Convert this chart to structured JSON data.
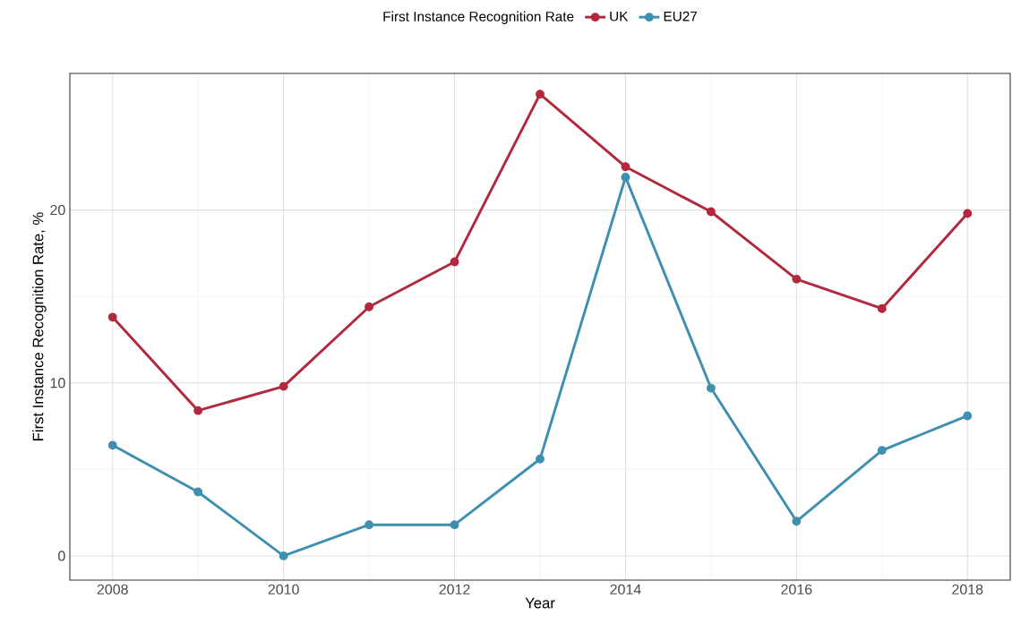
{
  "chart_data": {
    "type": "line",
    "xlabel": "Year",
    "ylabel": "First Instance Recognition Rate, %",
    "legend_title": "First Instance Recognition Rate",
    "x": [
      2008,
      2009,
      2010,
      2011,
      2012,
      2013,
      2014,
      2015,
      2016,
      2017,
      2018
    ],
    "series": [
      {
        "name": "UK",
        "color": "#b2283c",
        "values": [
          13.8,
          8.4,
          9.8,
          14.4,
          17.0,
          26.7,
          22.5,
          19.9,
          16.0,
          14.3,
          19.8
        ]
      },
      {
        "name": "EU27",
        "color": "#3f8fb0",
        "values": [
          6.4,
          3.7,
          0.0,
          1.8,
          1.8,
          5.6,
          21.9,
          9.7,
          2.0,
          6.1,
          8.1
        ]
      }
    ],
    "xlim": [
      2007.5,
      2018.5
    ],
    "ylim": [
      -1.4,
      27.9
    ],
    "xticks": [
      2008,
      2010,
      2012,
      2014,
      2016,
      2018
    ],
    "yticks": [
      0,
      10,
      20
    ],
    "grid": true,
    "legend": "top",
    "marker": "circle",
    "line_style": "solid"
  }
}
